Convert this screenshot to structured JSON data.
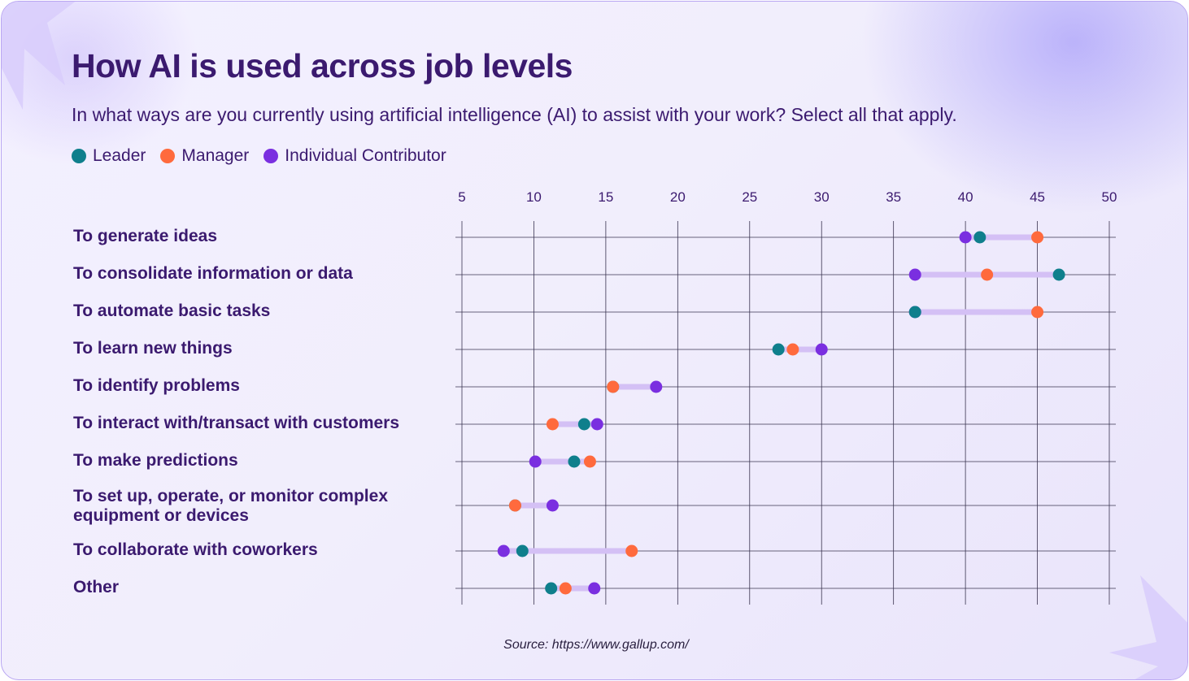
{
  "title": "How AI is used across job levels",
  "subtitle": "In what ways are you currently using artificial intelligence (AI) to assist with your work? Select all that apply.",
  "legend": [
    {
      "name": "Leader",
      "color": "#0f7f8c"
    },
    {
      "name": "Manager",
      "color": "#ff6a3d"
    },
    {
      "name": "Individual Contributor",
      "color": "#7a2fe0"
    }
  ],
  "source": "Source: https://www.gallup.com/",
  "chart_data": {
    "type": "dumbbell",
    "x_ticks": [
      5,
      10,
      15,
      20,
      25,
      30,
      35,
      40,
      45,
      50
    ],
    "xlim": [
      5,
      50
    ],
    "grid": true,
    "legend_position": "top-left",
    "range_color": "#d4c0f5",
    "categories": [
      "To generate ideas",
      "To consolidate information or data",
      "To automate basic tasks",
      "To learn new things",
      "To identify problems",
      "To interact with/transact with customers",
      "To make predictions",
      "To set up, operate, or monitor complex equipment or devices",
      "To collaborate with coworkers",
      "Other"
    ],
    "series": [
      {
        "name": "Leader",
        "color": "#0f7f8c",
        "values": [
          41,
          46.5,
          36.5,
          27,
          15.5,
          13.5,
          12.8,
          8.7,
          9.2,
          11.2
        ]
      },
      {
        "name": "Manager",
        "color": "#ff6a3d",
        "values": [
          45,
          41.5,
          45,
          28,
          15.5,
          11.3,
          13.9,
          8.7,
          16.8,
          12.2
        ]
      },
      {
        "name": "Individual Contributor",
        "color": "#7a2fe0",
        "values": [
          40,
          36.5,
          36.5,
          30,
          18.5,
          14.4,
          10.1,
          11.3,
          7.9,
          14.2
        ]
      }
    ]
  }
}
